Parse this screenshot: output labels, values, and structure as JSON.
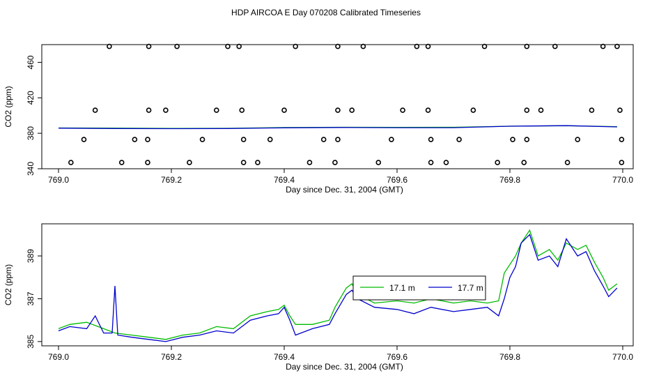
{
  "title": "HDP AIRCOA E  Day 070208  Calibrated Timeseries",
  "chart_data": [
    {
      "type": "scatter",
      "xlabel": "Day since Dec. 31, 2004 (GMT)",
      "ylabel": "CO2 (ppm)",
      "xlim": [
        769.0,
        770.0
      ],
      "ylim": [
        340,
        480
      ],
      "xticks": [
        "769.0",
        "769.2",
        "769.4",
        "769.6",
        "769.8",
        "770.0"
      ],
      "yticks": [
        "340",
        "380",
        "420",
        "460"
      ],
      "grid": false,
      "series": [
        {
          "color": "#00bb00",
          "style": "line",
          "points": [
            [
              769.0,
              386
            ],
            [
              769.1,
              385.8
            ],
            [
              769.2,
              385.5
            ],
            [
              769.3,
              385.6
            ],
            [
              769.4,
              386.5
            ],
            [
              769.5,
              386.8
            ],
            [
              769.6,
              386.7
            ],
            [
              769.7,
              386.8
            ],
            [
              769.8,
              388
            ],
            [
              769.9,
              388.5
            ],
            [
              769.99,
              387.5
            ]
          ]
        },
        {
          "color": "#0000cc",
          "style": "line",
          "points": [
            [
              769.0,
              385.8
            ],
            [
              769.1,
              385.4
            ],
            [
              769.2,
              385.2
            ],
            [
              769.3,
              385.4
            ],
            [
              769.4,
              386.2
            ],
            [
              769.5,
              386.6
            ],
            [
              769.6,
              386.3
            ],
            [
              769.7,
              386.3
            ],
            [
              769.8,
              388
            ],
            [
              769.9,
              388.6
            ],
            [
              769.99,
              387.2
            ]
          ]
        },
        {
          "color": "#000000",
          "style": "points",
          "points": [
            [
              769.09,
              478
            ],
            [
              769.16,
              478
            ],
            [
              769.21,
              478
            ],
            [
              769.3,
              478
            ],
            [
              769.32,
              478
            ],
            [
              769.42,
              478
            ],
            [
              769.495,
              478
            ],
            [
              769.54,
              478
            ],
            [
              769.635,
              478
            ],
            [
              769.655,
              478
            ],
            [
              769.755,
              478
            ],
            [
              769.83,
              478
            ],
            [
              769.88,
              478
            ],
            [
              769.965,
              478
            ],
            [
              769.99,
              478
            ],
            [
              769.065,
              406
            ],
            [
              769.16,
              406
            ],
            [
              769.19,
              406
            ],
            [
              769.28,
              406
            ],
            [
              769.325,
              406
            ],
            [
              769.4,
              406
            ],
            [
              769.495,
              406
            ],
            [
              769.52,
              406
            ],
            [
              769.61,
              406
            ],
            [
              769.655,
              406
            ],
            [
              769.735,
              406
            ],
            [
              769.83,
              406
            ],
            [
              769.855,
              406
            ],
            [
              769.945,
              406
            ],
            [
              769.995,
              406
            ],
            [
              769.045,
              373
            ],
            [
              769.135,
              373
            ],
            [
              769.158,
              373
            ],
            [
              769.255,
              373
            ],
            [
              769.328,
              373
            ],
            [
              769.375,
              373
            ],
            [
              769.47,
              373
            ],
            [
              769.495,
              373
            ],
            [
              769.59,
              373
            ],
            [
              769.66,
              373
            ],
            [
              769.71,
              373
            ],
            [
              769.805,
              373
            ],
            [
              769.83,
              373
            ],
            [
              769.92,
              373
            ],
            [
              769.998,
              373
            ],
            [
              769.022,
              347
            ],
            [
              769.112,
              347
            ],
            [
              769.158,
              347
            ],
            [
              769.232,
              347
            ],
            [
              769.328,
              347
            ],
            [
              769.353,
              347
            ],
            [
              769.445,
              347
            ],
            [
              769.49,
              347
            ],
            [
              769.567,
              347
            ],
            [
              769.66,
              347
            ],
            [
              769.687,
              347
            ],
            [
              769.778,
              347
            ],
            [
              769.825,
              347
            ],
            [
              769.902,
              347
            ],
            [
              769.998,
              347
            ]
          ]
        }
      ]
    },
    {
      "type": "line",
      "xlabel": "Day since Dec. 31, 2004 (GMT)",
      "ylabel": "CO2 (ppm)",
      "xlim": [
        769.0,
        770.0
      ],
      "ylim": [
        384.8,
        390.5
      ],
      "xticks": [
        "769.0",
        "769.2",
        "769.4",
        "769.6",
        "769.8",
        "770.0"
      ],
      "yticks": [
        "385",
        "387",
        "389"
      ],
      "grid": false,
      "legend": "center-right",
      "series": [
        {
          "name": "17.1 m",
          "color": "#00bb00",
          "points": [
            [
              769.0,
              385.6
            ],
            [
              769.02,
              385.8
            ],
            [
              769.05,
              385.9
            ],
            [
              769.08,
              385.6
            ],
            [
              769.1,
              385.4
            ],
            [
              769.13,
              385.3
            ],
            [
              769.16,
              385.2
            ],
            [
              769.19,
              385.1
            ],
            [
              769.22,
              385.3
            ],
            [
              769.25,
              385.4
            ],
            [
              769.28,
              385.7
            ],
            [
              769.31,
              385.6
            ],
            [
              769.34,
              386.2
            ],
            [
              769.37,
              386.4
            ],
            [
              769.39,
              386.5
            ],
            [
              769.4,
              386.7
            ],
            [
              769.41,
              386.2
            ],
            [
              769.42,
              385.8
            ],
            [
              769.45,
              385.8
            ],
            [
              769.48,
              386.0
            ],
            [
              769.49,
              386.6
            ],
            [
              769.51,
              387.5
            ],
            [
              769.52,
              387.7
            ],
            [
              769.53,
              387.2
            ],
            [
              769.56,
              386.8
            ],
            [
              769.6,
              386.9
            ],
            [
              769.63,
              386.8
            ],
            [
              769.66,
              387.0
            ],
            [
              769.7,
              386.8
            ],
            [
              769.73,
              386.9
            ],
            [
              769.76,
              386.8
            ],
            [
              769.78,
              386.9
            ],
            [
              769.79,
              388.2
            ],
            [
              769.81,
              389.0
            ],
            [
              769.82,
              389.6
            ],
            [
              769.835,
              390.2
            ],
            [
              769.85,
              389.0
            ],
            [
              769.87,
              389.3
            ],
            [
              769.885,
              388.8
            ],
            [
              769.9,
              389.6
            ],
            [
              769.92,
              389.3
            ],
            [
              769.935,
              389.5
            ],
            [
              769.95,
              388.7
            ],
            [
              769.965,
              388.0
            ],
            [
              769.975,
              387.4
            ],
            [
              769.99,
              387.7
            ]
          ]
        },
        {
          "name": "17.7 m",
          "color": "#0000cc",
          "points": [
            [
              769.0,
              385.5
            ],
            [
              769.02,
              385.7
            ],
            [
              769.05,
              385.6
            ],
            [
              769.065,
              386.2
            ],
            [
              769.08,
              385.4
            ],
            [
              769.095,
              385.4
            ],
            [
              769.1,
              387.6
            ],
            [
              769.105,
              385.3
            ],
            [
              769.13,
              385.2
            ],
            [
              769.16,
              385.1
            ],
            [
              769.19,
              385.0
            ],
            [
              769.22,
              385.2
            ],
            [
              769.25,
              385.3
            ],
            [
              769.28,
              385.5
            ],
            [
              769.31,
              385.4
            ],
            [
              769.34,
              386.0
            ],
            [
              769.37,
              386.2
            ],
            [
              769.39,
              386.3
            ],
            [
              769.4,
              386.6
            ],
            [
              769.41,
              386.0
            ],
            [
              769.42,
              385.3
            ],
            [
              769.45,
              385.6
            ],
            [
              769.48,
              385.8
            ],
            [
              769.49,
              386.3
            ],
            [
              769.51,
              387.2
            ],
            [
              769.52,
              387.4
            ],
            [
              769.53,
              387.0
            ],
            [
              769.56,
              386.6
            ],
            [
              769.6,
              386.5
            ],
            [
              769.63,
              386.3
            ],
            [
              769.66,
              386.6
            ],
            [
              769.7,
              386.4
            ],
            [
              769.73,
              386.5
            ],
            [
              769.76,
              386.6
            ],
            [
              769.78,
              386.2
            ],
            [
              769.79,
              387.0
            ],
            [
              769.8,
              388.0
            ],
            [
              769.81,
              388.5
            ],
            [
              769.82,
              389.6
            ],
            [
              769.835,
              390.0
            ],
            [
              769.85,
              388.8
            ],
            [
              769.87,
              389.0
            ],
            [
              769.885,
              388.5
            ],
            [
              769.9,
              389.8
            ],
            [
              769.92,
              389.0
            ],
            [
              769.935,
              389.2
            ],
            [
              769.95,
              388.3
            ],
            [
              769.965,
              387.6
            ],
            [
              769.975,
              387.1
            ],
            [
              769.99,
              387.5
            ]
          ]
        }
      ]
    }
  ]
}
